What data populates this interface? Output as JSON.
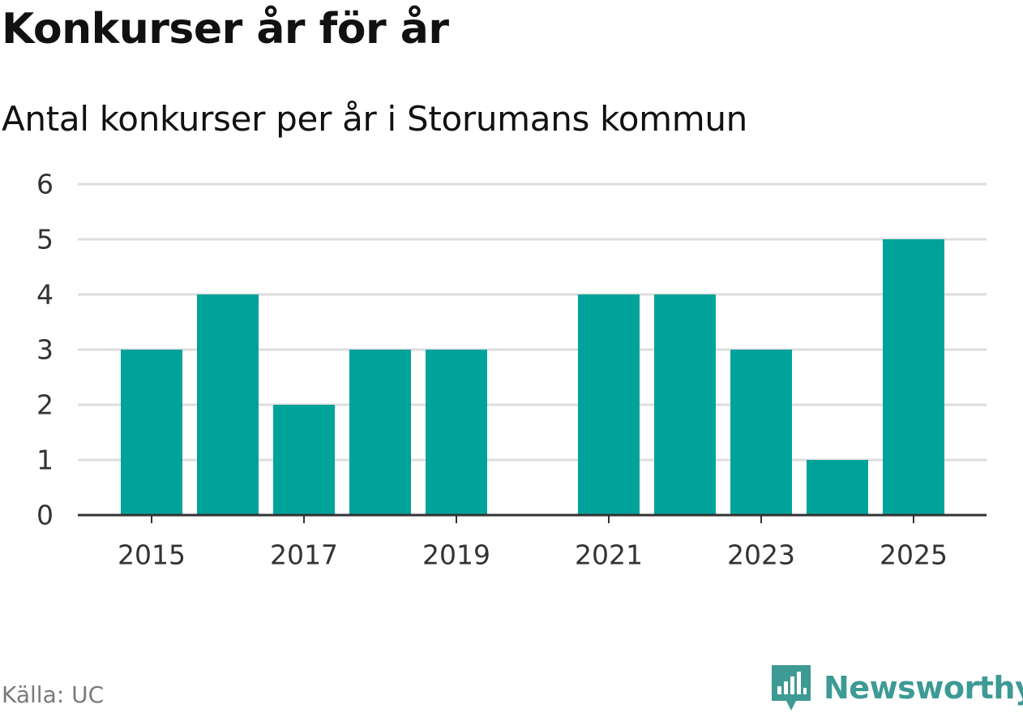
{
  "title": "Konkurser år för år",
  "subtitle": "Antal konkurser per år i Storumans kommun",
  "source": "Källa: UC",
  "brand": {
    "name": "Newsworthy",
    "icon": "newsworthy-logo-icon",
    "color": "#3d9a94"
  },
  "colors": {
    "bar": "#00a39a",
    "grid": "#dddddd",
    "axis": "#333333"
  },
  "chart_data": {
    "type": "bar",
    "categories": [
      "2015",
      "2016",
      "2017",
      "2018",
      "2019",
      "2020",
      "2021",
      "2022",
      "2023",
      "2024",
      "2025"
    ],
    "values": [
      3,
      4,
      2,
      3,
      3,
      0,
      4,
      4,
      3,
      1,
      5
    ],
    "x_tick_labels": [
      "2015",
      "2017",
      "2019",
      "2021",
      "2023",
      "2025"
    ],
    "y_ticks": [
      0,
      1,
      2,
      3,
      4,
      5,
      6
    ],
    "ylim": [
      0,
      6
    ],
    "xlabel": "",
    "ylabel": "",
    "grid": "horizontal",
    "legend": "none"
  }
}
